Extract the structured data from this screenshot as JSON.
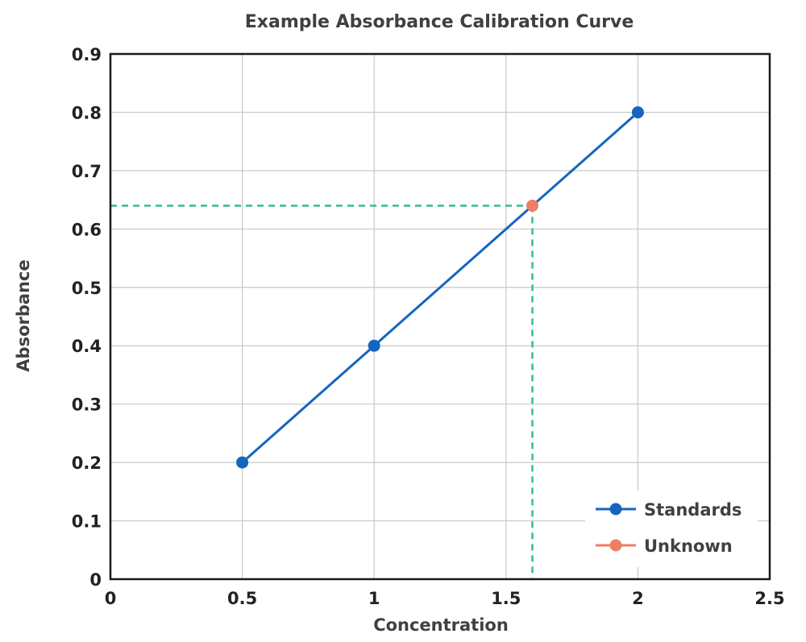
{
  "chart_data": {
    "type": "line",
    "title": "Example Absorbance Calibration Curve",
    "xlabel": "Concentration",
    "ylabel": "Absorbance",
    "xlim": [
      0,
      2.5
    ],
    "ylim": [
      0,
      0.9
    ],
    "x_ticks": [
      "0",
      "0.5",
      "1",
      "1.5",
      "2",
      "2.5"
    ],
    "y_ticks": [
      "0",
      "0.1",
      "0.2",
      "0.3",
      "0.4",
      "0.5",
      "0.6",
      "0.7",
      "0.8",
      "0.9"
    ],
    "grid": true,
    "legend_position": "bottom-right",
    "series": [
      {
        "name": "Standards",
        "color": "#1565c0",
        "marker": "circle",
        "x": [
          0.5,
          1,
          2
        ],
        "y": [
          0.2,
          0.4,
          0.8
        ]
      },
      {
        "name": "Unknown",
        "color": "#f07e62",
        "marker": "circle",
        "x": [
          1.6
        ],
        "y": [
          0.64
        ]
      }
    ],
    "reference_lines": {
      "color": "#2fbf8a",
      "style": "dashed",
      "x": 1.6,
      "y": 0.64
    }
  }
}
